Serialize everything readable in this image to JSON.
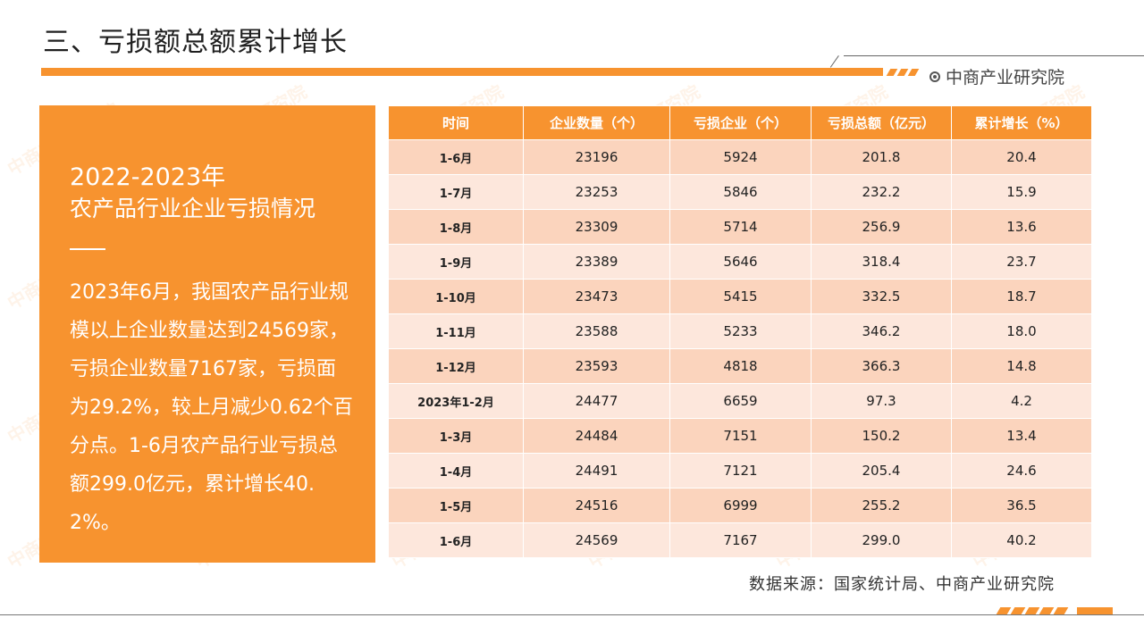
{
  "page": {
    "title": "三、亏损额总额累计增长",
    "brand": "中商产业研究院"
  },
  "panel": {
    "heading_line1": "2022-2023年",
    "heading_line2": "农产品行业企业亏损情况",
    "body": "2023年6月，我国农产品行业规模以上企业数量达到24569家，亏损企业数量7167家，亏损面为29.2%，较上月减少0.62个百分点。1-6月农产品行业亏损总额299.0亿元，累计增长40.2%。"
  },
  "table": {
    "headers": [
      "时间",
      "企业数量（个）",
      "亏损企业（个）",
      "亏损总额（亿元）",
      "累计增长（%）"
    ],
    "rows": [
      [
        "1-6月",
        "23196",
        "5924",
        "201.8",
        "20.4"
      ],
      [
        "1-7月",
        "23253",
        "5846",
        "232.2",
        "15.9"
      ],
      [
        "1-8月",
        "23309",
        "5714",
        "256.9",
        "13.6"
      ],
      [
        "1-9月",
        "23389",
        "5646",
        "318.4",
        "23.7"
      ],
      [
        "1-10月",
        "23473",
        "5415",
        "332.5",
        "18.7"
      ],
      [
        "1-11月",
        "23588",
        "5233",
        "346.2",
        "18.0"
      ],
      [
        "1-12月",
        "23593",
        "4818",
        "366.3",
        "14.8"
      ],
      [
        "2023年1-2月",
        "24477",
        "6659",
        "97.3",
        "4.2"
      ],
      [
        "1-3月",
        "24484",
        "7151",
        "150.2",
        "13.4"
      ],
      [
        "1-4月",
        "24491",
        "7121",
        "205.4",
        "24.6"
      ],
      [
        "1-5月",
        "24516",
        "6999",
        "255.2",
        "36.5"
      ],
      [
        "1-6月",
        "24569",
        "7167",
        "299.0",
        "40.2"
      ]
    ]
  },
  "source": "数据来源：国家统计局、中商产业研究院",
  "watermark": "中商产业研究院",
  "colors": {
    "accent": "#f7932f",
    "row_dark": "#fbd4bd",
    "row_light": "#fde7dc"
  }
}
